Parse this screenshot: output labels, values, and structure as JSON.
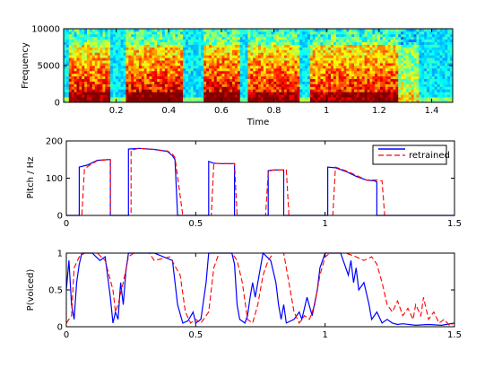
{
  "chart_data": [
    {
      "type": "heatmap",
      "xlabel": "Time",
      "ylabel": "Frequency",
      "xlim": [
        0.0,
        1.48
      ],
      "ylim": [
        0,
        10000
      ],
      "x_ticks": [
        0.2,
        0.4,
        0.6,
        0.8,
        1,
        1.2,
        1.4
      ],
      "x_tick_labels": [
        "0.2",
        "0.4",
        "0.6",
        "0.8",
        "1",
        "1.2",
        "1.4"
      ],
      "y_ticks": [
        0,
        5000,
        10000
      ],
      "y_tick_labels": [
        "0",
        "5000",
        "10000"
      ],
      "colormap": "jet",
      "energy_segments": [
        {
          "t": [
            0.02,
            0.18
          ],
          "strength": 0.85
        },
        {
          "t": [
            0.24,
            0.45
          ],
          "strength": 0.9
        },
        {
          "t": [
            0.53,
            0.67
          ],
          "strength": 0.9
        },
        {
          "t": [
            0.7,
            0.9
          ],
          "strength": 0.85
        },
        {
          "t": [
            0.94,
            1.0
          ],
          "strength": 0.8
        },
        {
          "t": [
            1.0,
            1.27
          ],
          "strength": 0.85
        },
        {
          "t": [
            1.27,
            1.35
          ],
          "strength": 0.35
        }
      ]
    },
    {
      "type": "line",
      "ylabel": "Pitch / Hz",
      "xlim": [
        0,
        1.5
      ],
      "ylim": [
        0,
        200
      ],
      "x_ticks": [
        0,
        0.5,
        1,
        1.5
      ],
      "x_tick_labels": [
        "0",
        "0.5",
        "1",
        "1.5"
      ],
      "y_ticks": [
        0,
        100,
        200
      ],
      "y_tick_labels": [
        "0",
        "100",
        "200"
      ],
      "legend_position": "top-right",
      "series": [
        {
          "name": "",
          "color": "#0000ff",
          "dash": "solid",
          "values": [
            [
              0,
              0
            ],
            [
              0.05,
              0
            ],
            [
              0.05,
              130
            ],
            [
              0.08,
              135
            ],
            [
              0.12,
              148
            ],
            [
              0.16,
              150
            ],
            [
              0.17,
              150
            ],
            [
              0.17,
              0
            ],
            [
              0.24,
              0
            ],
            [
              0.24,
              178
            ],
            [
              0.28,
              180
            ],
            [
              0.34,
              177
            ],
            [
              0.39,
              172
            ],
            [
              0.41,
              160
            ],
            [
              0.42,
              150
            ],
            [
              0.43,
              0
            ],
            [
              0.55,
              0
            ],
            [
              0.55,
              145
            ],
            [
              0.57,
              140
            ],
            [
              0.6,
              139
            ],
            [
              0.65,
              139
            ],
            [
              0.65,
              0
            ],
            [
              0.78,
              0
            ],
            [
              0.78,
              120
            ],
            [
              0.8,
              122
            ],
            [
              0.84,
              122
            ],
            [
              0.84,
              0
            ],
            [
              1.01,
              0
            ],
            [
              1.01,
              130
            ],
            [
              1.04,
              128
            ],
            [
              1.08,
              118
            ],
            [
              1.12,
              105
            ],
            [
              1.16,
              95
            ],
            [
              1.19,
              93
            ],
            [
              1.2,
              90
            ],
            [
              1.2,
              0
            ],
            [
              1.5,
              0
            ]
          ]
        },
        {
          "name": "retrained",
          "color": "#ff0000",
          "dash": "dashed",
          "values": [
            [
              0,
              0
            ],
            [
              0.06,
              0
            ],
            [
              0.07,
              125
            ],
            [
              0.09,
              135
            ],
            [
              0.12,
              147
            ],
            [
              0.17,
              150
            ],
            [
              0.17,
              0
            ],
            [
              0.25,
              0
            ],
            [
              0.25,
              175
            ],
            [
              0.28,
              180
            ],
            [
              0.34,
              177
            ],
            [
              0.39,
              173
            ],
            [
              0.41,
              165
            ],
            [
              0.42,
              155
            ],
            [
              0.45,
              0
            ],
            [
              0.56,
              0
            ],
            [
              0.57,
              140
            ],
            [
              0.6,
              139
            ],
            [
              0.65,
              139
            ],
            [
              0.66,
              0
            ],
            [
              0.77,
              0
            ],
            [
              0.78,
              118
            ],
            [
              0.8,
              122
            ],
            [
              0.85,
              122
            ],
            [
              0.86,
              0
            ],
            [
              1.03,
              0
            ],
            [
              1.04,
              130
            ],
            [
              1.08,
              120
            ],
            [
              1.12,
              108
            ],
            [
              1.16,
              95
            ],
            [
              1.2,
              95
            ],
            [
              1.22,
              93
            ],
            [
              1.23,
              0
            ],
            [
              1.5,
              0
            ]
          ]
        }
      ]
    },
    {
      "type": "line",
      "ylabel": "P(voiced)",
      "xlim": [
        0,
        1.5
      ],
      "ylim": [
        0,
        1
      ],
      "x_ticks": [
        0,
        0.5,
        1,
        1.5
      ],
      "x_tick_labels": [
        "0",
        "0.5",
        "1",
        "1.5"
      ],
      "y_ticks": [
        0,
        0.5,
        1
      ],
      "y_tick_labels": [
        "0",
        "0.5",
        "1"
      ],
      "series": [
        {
          "name": "",
          "color": "#0000ff",
          "dash": "solid",
          "values": [
            [
              0,
              0.5
            ],
            [
              0.01,
              0.9
            ],
            [
              0.02,
              0.3
            ],
            [
              0.03,
              0.1
            ],
            [
              0.04,
              0.6
            ],
            [
              0.05,
              0.85
            ],
            [
              0.06,
              1
            ],
            [
              0.1,
              1
            ],
            [
              0.13,
              0.9
            ],
            [
              0.15,
              0.95
            ],
            [
              0.17,
              0.4
            ],
            [
              0.18,
              0.05
            ],
            [
              0.19,
              0.2
            ],
            [
              0.2,
              0.1
            ],
            [
              0.21,
              0.6
            ],
            [
              0.22,
              0.3
            ],
            [
              0.23,
              0.75
            ],
            [
              0.24,
              1
            ],
            [
              0.3,
              1
            ],
            [
              0.34,
              1
            ],
            [
              0.41,
              0.9
            ],
            [
              0.43,
              0.3
            ],
            [
              0.45,
              0.05
            ],
            [
              0.47,
              0.08
            ],
            [
              0.49,
              0.2
            ],
            [
              0.5,
              0.05
            ],
            [
              0.52,
              0.1
            ],
            [
              0.54,
              0.6
            ],
            [
              0.55,
              1
            ],
            [
              0.6,
              1
            ],
            [
              0.64,
              1
            ],
            [
              0.65,
              0.85
            ],
            [
              0.66,
              0.3
            ],
            [
              0.67,
              0.1
            ],
            [
              0.69,
              0.05
            ],
            [
              0.7,
              0.15
            ],
            [
              0.71,
              0.4
            ],
            [
              0.72,
              0.6
            ],
            [
              0.73,
              0.4
            ],
            [
              0.75,
              0.8
            ],
            [
              0.76,
              1
            ],
            [
              0.79,
              0.9
            ],
            [
              0.81,
              0.6
            ],
            [
              0.82,
              0.3
            ],
            [
              0.83,
              0.1
            ],
            [
              0.84,
              0.3
            ],
            [
              0.85,
              0.05
            ],
            [
              0.88,
              0.1
            ],
            [
              0.9,
              0.2
            ],
            [
              0.91,
              0.1
            ],
            [
              0.93,
              0.4
            ],
            [
              0.95,
              0.15
            ],
            [
              0.97,
              0.5
            ],
            [
              0.98,
              0.8
            ],
            [
              1.0,
              1
            ],
            [
              1.06,
              1
            ],
            [
              1.09,
              0.7
            ],
            [
              1.1,
              0.9
            ],
            [
              1.11,
              0.6
            ],
            [
              1.12,
              0.8
            ],
            [
              1.13,
              0.5
            ],
            [
              1.15,
              0.6
            ],
            [
              1.17,
              0.3
            ],
            [
              1.18,
              0.1
            ],
            [
              1.2,
              0.2
            ],
            [
              1.22,
              0.05
            ],
            [
              1.24,
              0.1
            ],
            [
              1.26,
              0.05
            ],
            [
              1.28,
              0.03
            ],
            [
              1.3,
              0.04
            ],
            [
              1.35,
              0.02
            ],
            [
              1.4,
              0.03
            ],
            [
              1.45,
              0.02
            ],
            [
              1.5,
              0.05
            ]
          ]
        },
        {
          "name": "retrained",
          "color": "#ff0000",
          "dash": "dashed",
          "values": [
            [
              0,
              0.05
            ],
            [
              0.02,
              0.15
            ],
            [
              0.03,
              0.8
            ],
            [
              0.05,
              0.95
            ],
            [
              0.07,
              1
            ],
            [
              0.12,
              1
            ],
            [
              0.15,
              0.9
            ],
            [
              0.18,
              0.5
            ],
            [
              0.19,
              0.2
            ],
            [
              0.2,
              0.3
            ],
            [
              0.22,
              0.6
            ],
            [
              0.24,
              0.95
            ],
            [
              0.26,
              1
            ],
            [
              0.3,
              1
            ],
            [
              0.32,
              1
            ],
            [
              0.34,
              0.9
            ],
            [
              0.4,
              0.95
            ],
            [
              0.44,
              0.7
            ],
            [
              0.46,
              0.2
            ],
            [
              0.48,
              0.05
            ],
            [
              0.5,
              0.1
            ],
            [
              0.52,
              0.05
            ],
            [
              0.55,
              0.2
            ],
            [
              0.57,
              0.8
            ],
            [
              0.59,
              1
            ],
            [
              0.64,
              1
            ],
            [
              0.66,
              0.9
            ],
            [
              0.68,
              0.6
            ],
            [
              0.7,
              0.1
            ],
            [
              0.72,
              0.05
            ],
            [
              0.74,
              0.3
            ],
            [
              0.76,
              0.7
            ],
            [
              0.78,
              0.9
            ],
            [
              0.8,
              1
            ],
            [
              0.84,
              1
            ],
            [
              0.86,
              0.6
            ],
            [
              0.88,
              0.2
            ],
            [
              0.9,
              0.05
            ],
            [
              0.92,
              0.15
            ],
            [
              0.94,
              0.1
            ],
            [
              0.96,
              0.3
            ],
            [
              0.98,
              0.7
            ],
            [
              1.0,
              0.95
            ],
            [
              1.02,
              1
            ],
            [
              1.08,
              1
            ],
            [
              1.12,
              0.95
            ],
            [
              1.15,
              0.9
            ],
            [
              1.18,
              0.95
            ],
            [
              1.2,
              0.85
            ],
            [
              1.22,
              0.6
            ],
            [
              1.24,
              0.3
            ],
            [
              1.26,
              0.2
            ],
            [
              1.28,
              0.35
            ],
            [
              1.3,
              0.15
            ],
            [
              1.32,
              0.25
            ],
            [
              1.34,
              0.1
            ],
            [
              1.35,
              0.3
            ],
            [
              1.37,
              0.15
            ],
            [
              1.38,
              0.4
            ],
            [
              1.4,
              0.1
            ],
            [
              1.42,
              0.2
            ],
            [
              1.44,
              0.05
            ],
            [
              1.46,
              0.1
            ],
            [
              1.48,
              0.02
            ],
            [
              1.5,
              0.05
            ]
          ]
        }
      ]
    }
  ]
}
